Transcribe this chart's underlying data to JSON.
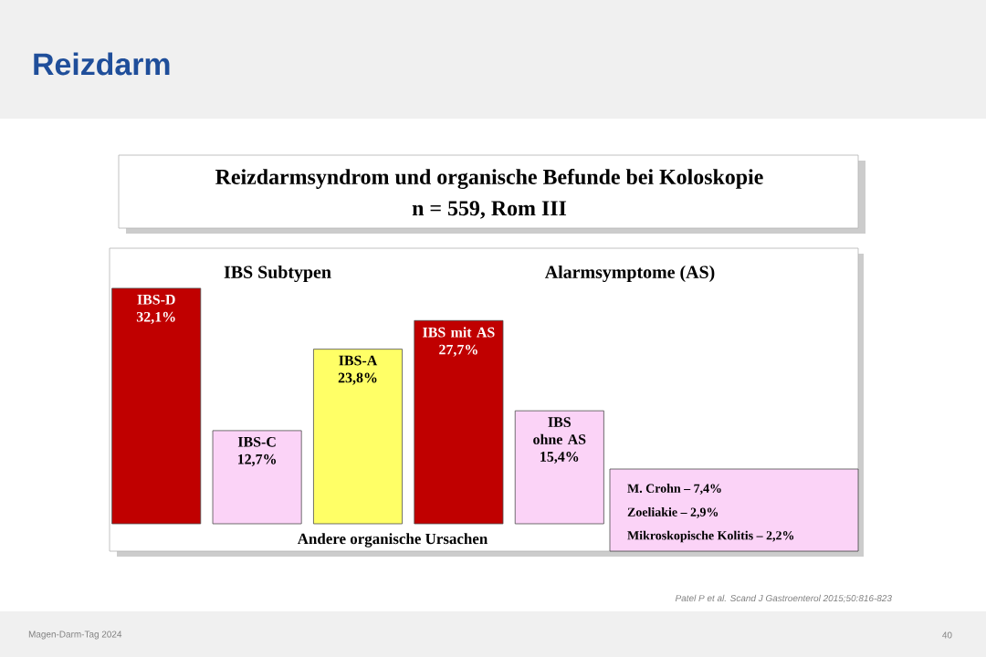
{
  "chart_data": {
    "type": "bar",
    "title": "Reizdarmsyndrom und organische Befunde bei Koloskopie",
    "subtitle": "n = 559, Rom III",
    "categories": [
      "IBS-D",
      "IBS-C",
      "IBS-A",
      "IBS mit AS",
      "IBS ohne AS"
    ],
    "values": [
      32.1,
      12.7,
      23.8,
      27.7,
      15.4
    ],
    "value_labels": [
      "32,1%",
      "12,7%",
      "23,8%",
      "27,7%",
      "15,4%"
    ],
    "colors": [
      "#c00000",
      "#fbd3f7",
      "#ffff66",
      "#c00000",
      "#fbd3f7"
    ],
    "annotations": [
      "IBS Subtypen",
      "Alarmsymptome (AS)",
      "Andere organische Ursachen",
      "M. Crohn – 7,4%",
      "Zoeliakie – 2,9%",
      "Mikroskopische Kolitis – 2,2%",
      "Reizdarm",
      "Patel P et al. Scand J Gastroenterol 2015;50:816-823",
      "Magen-Darm-Tag 2024",
      "40"
    ]
  }
}
